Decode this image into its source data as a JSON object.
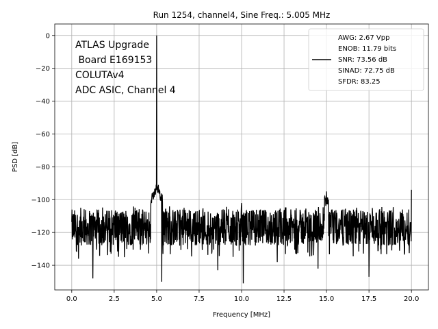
{
  "chart_data": {
    "type": "line",
    "title": "Run 1254, channel4, Sine Freq.: 5.005 MHz",
    "xlabel": "Frequency [MHz]",
    "ylabel": "PSD [dB]",
    "xlim": [
      -1.0,
      21.0
    ],
    "ylim": [
      -155,
      7
    ],
    "xticks": [
      0.0,
      2.5,
      5.0,
      7.5,
      10.0,
      12.5,
      15.0,
      17.5,
      20.0
    ],
    "xtick_labels": [
      "0.0",
      "2.5",
      "5.0",
      "7.5",
      "10.0",
      "12.5",
      "15.0",
      "17.5",
      "20.0"
    ],
    "yticks": [
      0,
      -20,
      -40,
      -60,
      -80,
      -100,
      -120,
      -140
    ],
    "ytick_labels": [
      "0",
      "−20",
      "−40",
      "−60",
      "−80",
      "−100",
      "−120",
      "−140"
    ],
    "grid": true,
    "legend_placement": "top-right",
    "series_color": "#000000",
    "legend_lines": [
      "AWG: 2.67 Vpp",
      "ENOB: 11.79 bits",
      "SNR: 73.56 dB",
      "SINAD: 72.75 dB",
      "SFDR: 83.25"
    ],
    "annotation_lines": [
      "ATLAS Upgrade",
      " Board E169153",
      "COLUTAv4",
      "ADC ASIC, Channel 4"
    ],
    "noise_floor_db": -117,
    "noise_band_db": [
      -130,
      -104
    ],
    "features": [
      {
        "x": 5.005,
        "y": 0
      },
      {
        "x": 4.9,
        "y": -97
      },
      {
        "x": 5.1,
        "y": -91
      },
      {
        "x": 4.95,
        "y": -93
      },
      {
        "x": 10.0,
        "y": -102
      },
      {
        "x": 15.0,
        "y": -95
      },
      {
        "x": 14.9,
        "y": -98
      },
      {
        "x": 15.1,
        "y": -100
      },
      {
        "x": 20.0,
        "y": -94
      }
    ],
    "dips": [
      {
        "x": 1.25,
        "y": -148
      },
      {
        "x": 5.3,
        "y": -150
      },
      {
        "x": 10.1,
        "y": -151
      },
      {
        "x": 17.5,
        "y": -147
      },
      {
        "x": 8.6,
        "y": -143
      },
      {
        "x": 14.5,
        "y": -142
      },
      {
        "x": 0.4,
        "y": -136
      },
      {
        "x": 3.1,
        "y": -135
      },
      {
        "x": 12.1,
        "y": -138
      }
    ]
  }
}
